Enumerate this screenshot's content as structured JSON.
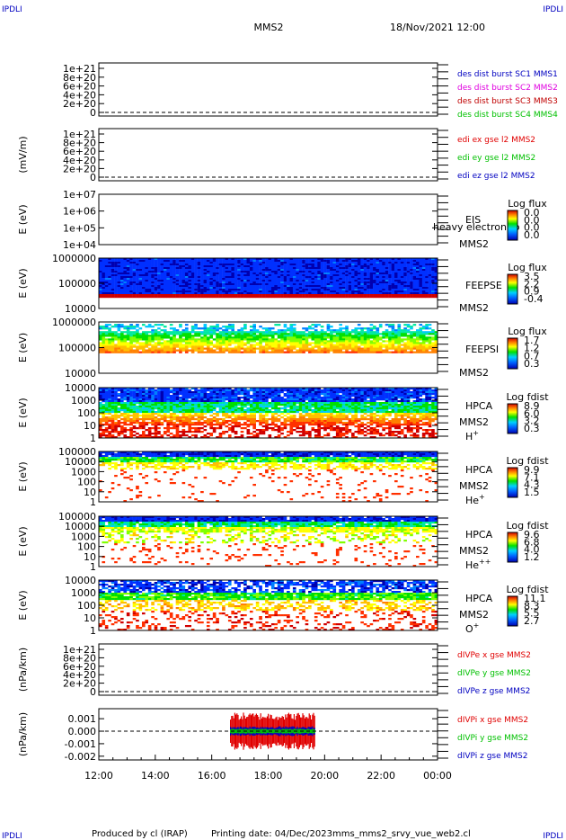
{
  "header": {
    "corner_left": "IPDLI",
    "corner_right": "IPDLI",
    "title": "MMS2",
    "datetime": "18/Nov/2021 12:00"
  },
  "footer": {
    "corner_left": "IPDLI",
    "corner_right": "IPDLI",
    "producer": "Produced by cl (IRAP)",
    "printing": "Printing date: 04/Dec/2023",
    "filename": "mms_mms2_srvy_vue_web2.cl"
  },
  "colors": {
    "red": "#e00000",
    "green": "#00c000",
    "blue": "#0000c0",
    "magenta": "#e000e0",
    "darkred": "#c00000"
  },
  "chart_data": [
    {
      "type": "line",
      "ylabel": "",
      "yticks": [
        "1e+21",
        "8e+20",
        "6e+20",
        "4e+20",
        "2e+20",
        "0"
      ],
      "series": [
        {
          "name": "des dist burst SC1 MMS1",
          "values": []
        },
        {
          "name": "des dist burst SC2 MMS2",
          "values": []
        },
        {
          "name": "des dist burst SC3 MMS3",
          "values": []
        },
        {
          "name": "des dist burst SC4 MMS4",
          "values": []
        }
      ],
      "series_colors": [
        "#0000c0",
        "#e000e0",
        "#c00000",
        "#00c000"
      ]
    },
    {
      "type": "line",
      "ylabel": "(mV/m)",
      "yticks": [
        "1e+21",
        "8e+20",
        "6e+20",
        "4e+20",
        "2e+20",
        "0"
      ],
      "series": [
        {
          "name": "edi ex gse l2 MMS2",
          "values": []
        },
        {
          "name": "edi ey gse l2 MMS2",
          "values": []
        },
        {
          "name": "edi ez gse l2 MMS2",
          "values": []
        }
      ],
      "series_colors": [
        "#e00000",
        "#00c000",
        "#0000c0"
      ]
    },
    {
      "type": "heatmap",
      "ylabel": "E (eV)",
      "yticks": [
        "1e+07",
        "1e+06",
        "1e+05",
        "1e+04"
      ],
      "instrument": "EIS",
      "spacecraft": "MMS2",
      "overlay": "heavy electron to",
      "colorbar_title": "Log flux",
      "colorbar_ticks": [
        "0.0",
        "0.0",
        "0.0",
        "0.0"
      ]
    },
    {
      "type": "heatmap",
      "ylabel": "E (eV)",
      "yticks": [
        "1000000",
        "100000",
        "10000"
      ],
      "instrument": "FEEPSE",
      "spacecraft": "MMS2",
      "colorbar_title": "Log flux",
      "colorbar_ticks": [
        "3.5",
        "2.2",
        "0.9",
        "-0.4"
      ]
    },
    {
      "type": "heatmap",
      "ylabel": "E (eV)",
      "yticks": [
        "1000000",
        "100000",
        "10000"
      ],
      "instrument": "FEEPSI",
      "spacecraft": "MMS2",
      "colorbar_title": "Log flux",
      "colorbar_ticks": [
        "1.7",
        "1.2",
        "0.7",
        "0.3"
      ]
    },
    {
      "type": "heatmap",
      "ylabel": "E (eV)",
      "yticks": [
        "10000",
        "1000",
        "100",
        "10",
        "1"
      ],
      "instrument": "HPCA",
      "spacecraft": "MMS2",
      "species": "H",
      "species_sup": "+",
      "colorbar_title": "Log fdist",
      "colorbar_ticks": [
        "8.9",
        "6.0",
        "3.2",
        "0.3"
      ]
    },
    {
      "type": "heatmap",
      "ylabel": "E (eV)",
      "yticks": [
        "100000",
        "10000",
        "1000",
        "100",
        "10",
        "1"
      ],
      "instrument": "HPCA",
      "spacecraft": "MMS2",
      "species": "He",
      "species_sup": "+",
      "colorbar_title": "Log fdist",
      "colorbar_ticks": [
        "9.9",
        "7.1",
        "4.3",
        "1.5"
      ]
    },
    {
      "type": "heatmap",
      "ylabel": "E (eV)",
      "yticks": [
        "100000",
        "10000",
        "1000",
        "100",
        "10",
        "1"
      ],
      "instrument": "HPCA",
      "spacecraft": "MMS2",
      "species": "He",
      "species_sup": "++",
      "colorbar_title": "Log fdist",
      "colorbar_ticks": [
        "9.6",
        "6.8",
        "4.0",
        "1.2"
      ]
    },
    {
      "type": "heatmap",
      "ylabel": "E (eV)",
      "yticks": [
        "10000",
        "1000",
        "100",
        "10",
        "1"
      ],
      "instrument": "HPCA",
      "spacecraft": "MMS2",
      "species": "O",
      "species_sup": "+",
      "colorbar_title": "Log fdist",
      "colorbar_ticks": [
        "11.1",
        "8.3",
        "5.5",
        "2.7"
      ]
    },
    {
      "type": "line",
      "ylabel": "(nPa/km)",
      "yticks": [
        "1e+21",
        "8e+20",
        "6e+20",
        "4e+20",
        "2e+20",
        "0"
      ],
      "series": [
        {
          "name": "dIVPe x gse MMS2",
          "values": []
        },
        {
          "name": "dIVPe y gse MMS2",
          "values": []
        },
        {
          "name": "dIVPe z gse MMS2",
          "values": []
        }
      ],
      "series_colors": [
        "#e00000",
        "#00c000",
        "#0000c0"
      ]
    },
    {
      "type": "line",
      "ylabel": "(nPa/km)",
      "yticks": [
        "0.001",
        "0.000",
        "-0.001",
        "-0.002"
      ],
      "ylim": [
        -0.0023,
        0.0018
      ],
      "data_interval": [
        "16:40",
        "19:40"
      ],
      "series": [
        {
          "name": "dIVPi x gse MMS2",
          "values": [
            -0.0015,
            0.0015
          ]
        },
        {
          "name": "dIVPi y gse MMS2",
          "values": [
            -0.0002,
            0.0002
          ]
        },
        {
          "name": "dIVPi z gse MMS2",
          "values": [
            -0.0004,
            0.0004
          ]
        }
      ],
      "series_colors": [
        "#e00000",
        "#00c000",
        "#0000c0"
      ]
    }
  ],
  "xaxis": {
    "ticks": [
      "12:00",
      "14:00",
      "16:00",
      "18:00",
      "20:00",
      "22:00",
      "00:00"
    ]
  }
}
